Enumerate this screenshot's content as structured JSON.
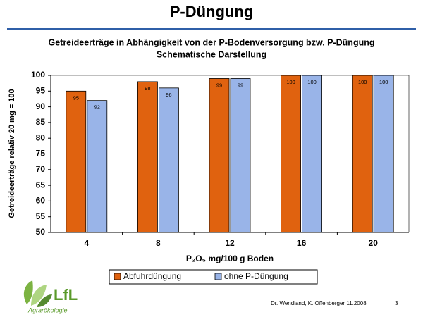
{
  "title": "P-Düngung",
  "chart_data": {
    "type": "bar",
    "title": "Getreideerträge in Abhängigkeit von der P-Bodenversorgung bzw. P-Düngung",
    "subtitle": "Schematische Darstellung",
    "y_label": "Getreideerträge relativ 20 mg = 100",
    "x_label": "P₂O₅ mg/100 g Boden",
    "categories": [
      "4",
      "8",
      "12",
      "16",
      "20"
    ],
    "series": [
      {
        "name": "Abfuhrdüngung",
        "color": "#e0620f",
        "values": [
          95,
          98,
          99,
          100,
          100
        ]
      },
      {
        "name": "ohne P-Düngung",
        "color": "#99b4e8",
        "values": [
          92,
          96,
          99,
          100,
          100
        ]
      }
    ],
    "ylim": [
      50,
      100
    ],
    "yticks": [
      50,
      55,
      60,
      65,
      70,
      75,
      80,
      85,
      90,
      95,
      100
    ],
    "grid": false,
    "legend": "bottom"
  },
  "logo": {
    "name": "LfL",
    "subtitle": "Agrarökologie"
  },
  "footer": {
    "authors": "Dr. Wendland, K. Offenberger  11.2008",
    "page": "3"
  }
}
